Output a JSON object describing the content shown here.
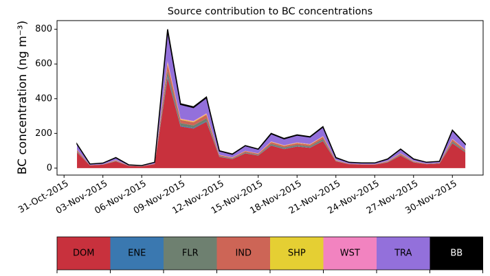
{
  "chart_data": {
    "type": "stacked_area",
    "title": "Source contribution to BC concentrations",
    "y_label": "BC concentration (ng m⁻³)",
    "x": [
      "2015-11-01",
      "2015-11-02",
      "2015-11-03",
      "2015-11-04",
      "2015-11-05",
      "2015-11-06",
      "2015-11-07",
      "2015-11-08",
      "2015-11-09",
      "2015-11-10",
      "2015-11-11",
      "2015-11-12",
      "2015-11-13",
      "2015-11-14",
      "2015-11-15",
      "2015-11-16",
      "2015-11-17",
      "2015-11-18",
      "2015-11-19",
      "2015-11-20",
      "2015-11-21",
      "2015-11-22",
      "2015-11-23",
      "2015-11-24",
      "2015-11-25",
      "2015-11-26",
      "2015-11-27",
      "2015-11-28",
      "2015-11-29",
      "2015-11-30",
      "2015-12-01"
    ],
    "series": [
      {
        "name": "DOM",
        "color": "#c8313d",
        "values": [
          91,
          16,
          20,
          39,
          13,
          10,
          23,
          520,
          240,
          228,
          267,
          65,
          52,
          85,
          72,
          130,
          110,
          124,
          117,
          156,
          39,
          23,
          20,
          20,
          33,
          72,
          33,
          23,
          26,
          143,
          91
        ]
      },
      {
        "name": "ENE",
        "color": "#3a78b0",
        "values": [
          1,
          0,
          0,
          1,
          0,
          0,
          0,
          8,
          4,
          4,
          4,
          1,
          1,
          1,
          1,
          2,
          2,
          2,
          2,
          2,
          1,
          0,
          0,
          0,
          1,
          1,
          1,
          0,
          0,
          2,
          1
        ]
      },
      {
        "name": "FLR",
        "color": "#6e8070",
        "values": [
          6,
          1,
          1,
          2,
          1,
          1,
          1,
          32,
          15,
          14,
          16,
          4,
          3,
          5,
          4,
          8,
          7,
          8,
          7,
          10,
          2,
          1,
          1,
          1,
          2,
          4,
          2,
          1,
          2,
          9,
          6
        ]
      },
      {
        "name": "IND",
        "color": "#cd6556",
        "values": [
          7,
          1,
          1,
          3,
          1,
          1,
          2,
          40,
          19,
          18,
          21,
          5,
          4,
          7,
          6,
          10,
          9,
          10,
          9,
          12,
          3,
          2,
          2,
          2,
          3,
          6,
          3,
          2,
          2,
          11,
          7
        ]
      },
      {
        "name": "SHP",
        "color": "#e5cf33",
        "values": [
          1,
          0,
          0,
          1,
          0,
          0,
          0,
          8,
          4,
          4,
          4,
          1,
          1,
          1,
          1,
          2,
          2,
          2,
          2,
          2,
          1,
          0,
          0,
          0,
          1,
          1,
          1,
          0,
          0,
          2,
          1
        ]
      },
      {
        "name": "WST",
        "color": "#f283c0",
        "values": [
          1,
          0,
          0,
          1,
          0,
          0,
          0,
          8,
          4,
          4,
          4,
          1,
          1,
          1,
          1,
          2,
          2,
          2,
          2,
          2,
          1,
          0,
          0,
          0,
          1,
          1,
          1,
          0,
          0,
          2,
          1
        ]
      },
      {
        "name": "TRA",
        "color": "#9370db",
        "values": [
          31,
          6,
          7,
          13,
          4,
          3,
          8,
          176,
          81,
          77,
          90,
          22,
          18,
          29,
          24,
          44,
          37,
          42,
          40,
          53,
          13,
          8,
          7,
          7,
          11,
          24,
          11,
          8,
          9,
          48,
          31
        ]
      },
      {
        "name": "BB",
        "color": "#000000",
        "values": [
          1,
          0,
          0,
          1,
          0,
          0,
          0,
          8,
          4,
          4,
          4,
          1,
          1,
          1,
          1,
          2,
          2,
          2,
          2,
          2,
          1,
          0,
          0,
          0,
          1,
          1,
          1,
          0,
          0,
          2,
          1
        ]
      }
    ],
    "xlim": [
      "2015-10-30T11:00",
      "2015-12-02T09:00"
    ],
    "xticks": [
      {
        "value": "2015-10-31",
        "label": "31-Oct-2015"
      },
      {
        "value": "2015-11-03",
        "label": "03-Nov-2015"
      },
      {
        "value": "2015-11-06",
        "label": "06-Nov-2015"
      },
      {
        "value": "2015-11-09",
        "label": "09-Nov-2015"
      },
      {
        "value": "2015-11-12",
        "label": "12-Nov-2015"
      },
      {
        "value": "2015-11-15",
        "label": "15-Nov-2015"
      },
      {
        "value": "2015-11-18",
        "label": "18-Nov-2015"
      },
      {
        "value": "2015-11-21",
        "label": "21-Nov-2015"
      },
      {
        "value": "2015-11-24",
        "label": "24-Nov-2015"
      },
      {
        "value": "2015-11-27",
        "label": "27-Nov-2015"
      },
      {
        "value": "2015-11-30",
        "label": "30-Nov-2015"
      }
    ],
    "ylim": [
      -40,
      850
    ],
    "yticks": [
      0,
      200,
      400,
      600,
      800
    ]
  }
}
